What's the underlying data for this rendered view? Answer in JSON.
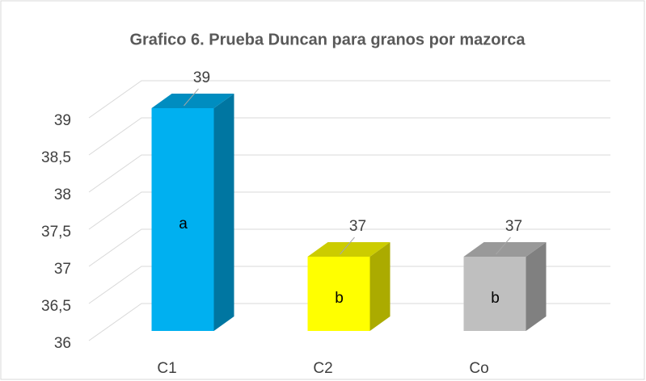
{
  "chart_data": {
    "type": "bar3d",
    "title": "Grafico 6. Prueba Duncan para granos por mazorca",
    "categories": [
      "C1",
      "C2",
      "Co"
    ],
    "values": [
      39,
      37,
      37
    ],
    "groups": [
      "a",
      "b",
      "b"
    ],
    "colors": [
      "#00b0f0",
      "#ffff00",
      "#bfbfbf"
    ],
    "ylim": [
      36,
      39
    ],
    "yticks": [
      36,
      {
        "value": 36.5,
        "label": "36,5"
      },
      37,
      {
        "value": 37.5,
        "label": "37,5"
      },
      38,
      {
        "value": 38.5,
        "label": "38,5"
      },
      39
    ],
    "grid": true
  }
}
